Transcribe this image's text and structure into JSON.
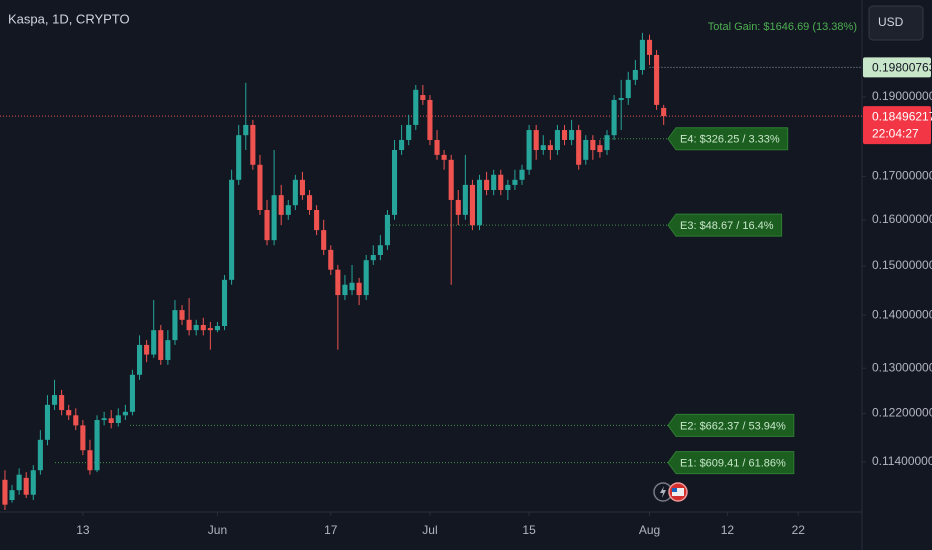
{
  "chart_data": {
    "type": "candlestick",
    "title": "Kaspa, 1D, CRYPTO",
    "currency": "USD",
    "total_gain": "Total Gain: $1646.69 (13.38%)",
    "countdown": "22:04:27",
    "log_scale": true,
    "up_color": "#26a69a",
    "down_color": "#ef5350",
    "xlim": [
      -0.7,
      121
    ],
    "xticks": [
      {
        "value": 11,
        "label": "13"
      },
      {
        "value": 30,
        "label": "Jun"
      },
      {
        "value": 46,
        "label": "17"
      },
      {
        "value": 60,
        "label": "Jul"
      },
      {
        "value": 74,
        "label": "15"
      },
      {
        "value": 91,
        "label": "Aug"
      },
      {
        "value": 102,
        "label": "12"
      },
      {
        "value": 112,
        "label": "22"
      }
    ],
    "ylim": [
      0.1066,
      0.2176
    ],
    "yticks": [
      {
        "value": 0.19,
        "label": "0.19000000"
      },
      {
        "value": 0.17,
        "label": "0.17000000"
      },
      {
        "value": 0.16,
        "label": "0.16000000"
      },
      {
        "value": 0.15,
        "label": "0.15000000"
      },
      {
        "value": 0.14,
        "label": "0.14000000"
      },
      {
        "value": 0.13,
        "label": "0.13000000"
      },
      {
        "value": 0.122,
        "label": "0.12200000"
      },
      {
        "value": 0.114,
        "label": "0.11400000"
      }
    ],
    "open": [
      0.1112,
      0.1081,
      0.1096,
      0.1115,
      0.1089,
      0.1127,
      0.1176,
      0.1235,
      0.1252,
      0.1226,
      0.1217,
      0.12,
      0.1159,
      0.1127,
      0.1209,
      0.1212,
      0.1204,
      0.1217,
      0.1223,
      0.1288,
      0.1343,
      0.1325,
      0.1371,
      0.1315,
      0.1352,
      0.141,
      0.1391,
      0.1371,
      0.1381,
      0.1375,
      0.1371,
      0.1379,
      0.1471,
      0.1692,
      0.1801,
      0.1827,
      0.1728,
      0.1622,
      0.1555,
      0.1656,
      0.1611,
      0.1633,
      0.1692,
      0.1656,
      0.1622,
      0.1577,
      0.1534,
      0.1492,
      0.144,
      0.145,
      0.1465,
      0.144,
      0.1512,
      0.1523,
      0.1544,
      0.1611,
      0.1764,
      0.1789,
      0.1827,
      0.1905,
      0.1892,
      0.1789,
      0.1752,
      0.174,
      0.1645,
      0.1611,
      0.168,
      0.1588,
      0.1692,
      0.1668,
      0.1704,
      0.1668,
      0.168,
      0.1692,
      0.1716,
      0.1814,
      0.1764,
      0.1776,
      0.1764,
      0.1814,
      0.1789,
      0.1814,
      0.174,
      0.1789,
      0.1776,
      0.1764,
      0.1801,
      0.1892,
      0.1897,
      0.1946,
      0.1973,
      0.2058,
      0.2015,
      0.1871
    ],
    "high": [
      0.1127,
      0.1104,
      0.113,
      0.1124,
      0.1135,
      0.1192,
      0.1252,
      0.1279,
      0.1261,
      0.1235,
      0.1229,
      0.1209,
      0.1176,
      0.1217,
      0.1223,
      0.1226,
      0.1229,
      0.1235,
      0.1297,
      0.1361,
      0.1352,
      0.143,
      0.1381,
      0.1371,
      0.143,
      0.142,
      0.1434,
      0.1391,
      0.1395,
      0.1387,
      0.1387,
      0.1481,
      0.1716,
      0.1827,
      0.1938,
      0.184,
      0.1752,
      0.1645,
      0.1764,
      0.168,
      0.1645,
      0.1704,
      0.1711,
      0.1668,
      0.1633,
      0.16,
      0.1544,
      0.1502,
      0.1481,
      0.1502,
      0.1475,
      0.1523,
      0.1544,
      0.1566,
      0.1622,
      0.1789,
      0.1827,
      0.1853,
      0.1932,
      0.1932,
      0.1905,
      0.1814,
      0.1764,
      0.1752,
      0.1668,
      0.1752,
      0.1692,
      0.1704,
      0.1711,
      0.1716,
      0.1716,
      0.1692,
      0.1716,
      0.1728,
      0.1827,
      0.1827,
      0.1801,
      0.1789,
      0.1827,
      0.1827,
      0.184,
      0.1827,
      0.1801,
      0.1801,
      0.1789,
      0.1814,
      0.1905,
      0.1946,
      0.1968,
      0.2001,
      0.2078,
      0.2073,
      0.2029,
      0.1879
    ],
    "low": [
      0.1066,
      0.1077,
      0.1089,
      0.1084,
      0.1081,
      0.112,
      0.1167,
      0.1226,
      0.1217,
      0.1209,
      0.1192,
      0.1151,
      0.112,
      0.1124,
      0.12,
      0.1195,
      0.1198,
      0.1209,
      0.1217,
      0.1279,
      0.1311,
      0.1319,
      0.1306,
      0.1306,
      0.1343,
      0.1381,
      0.1361,
      0.1361,
      0.1361,
      0.1334,
      0.1367,
      0.1371,
      0.1461,
      0.168,
      0.1764,
      0.1716,
      0.1611,
      0.1544,
      0.1544,
      0.1588,
      0.16,
      0.1622,
      0.1645,
      0.1611,
      0.1566,
      0.1523,
      0.1481,
      0.1334,
      0.143,
      0.144,
      0.142,
      0.143,
      0.1502,
      0.1512,
      0.1534,
      0.16,
      0.1752,
      0.1776,
      0.1814,
      0.1879,
      0.1776,
      0.174,
      0.1716,
      0.1461,
      0.1588,
      0.16,
      0.1577,
      0.1577,
      0.1656,
      0.1656,
      0.1656,
      0.1645,
      0.1668,
      0.168,
      0.1704,
      0.174,
      0.1752,
      0.174,
      0.1752,
      0.1776,
      0.1776,
      0.1716,
      0.1728,
      0.174,
      0.1745,
      0.1752,
      0.1789,
      0.1814,
      0.1879,
      0.1932,
      0.196,
      0.1987,
      0.1866,
      0.1827
    ],
    "close": [
      0.1074,
      0.1096,
      0.112,
      0.1089,
      0.1127,
      0.1176,
      0.1235,
      0.1252,
      0.1226,
      0.1217,
      0.12,
      0.1159,
      0.1127,
      0.1209,
      0.1212,
      0.1204,
      0.1217,
      0.1223,
      0.1288,
      0.1343,
      0.1325,
      0.1371,
      0.1315,
      0.1352,
      0.141,
      0.1391,
      0.1371,
      0.1381,
      0.1371,
      0.1371,
      0.1379,
      0.1471,
      0.1692,
      0.1801,
      0.1827,
      0.1728,
      0.1622,
      0.1555,
      0.1656,
      0.1611,
      0.1633,
      0.1692,
      0.1656,
      0.1622,
      0.1577,
      0.1534,
      0.1492,
      0.144,
      0.1461,
      0.1465,
      0.144,
      0.1512,
      0.1523,
      0.1544,
      0.1611,
      0.1764,
      0.1789,
      0.1827,
      0.1919,
      0.1892,
      0.1789,
      0.1752,
      0.174,
      0.1645,
      0.1611,
      0.168,
      0.1588,
      0.1692,
      0.1668,
      0.1704,
      0.1668,
      0.168,
      0.1692,
      0.1716,
      0.1814,
      0.1764,
      0.1776,
      0.1764,
      0.1814,
      0.1789,
      0.1814,
      0.1728,
      0.1789,
      0.1764,
      0.1759,
      0.1801,
      0.1892,
      0.1897,
      0.1946,
      0.1973,
      0.2058,
      0.2015,
      0.1879,
      0.18496217
    ],
    "price_line": {
      "value": 0.19800763,
      "color": "#c8e6c9"
    },
    "levels": [
      {
        "value": 0.1792,
        "label": "E4: $326.25 / 3.33%"
      },
      {
        "value": 0.1588,
        "label": "E3: $48.67 / 16.4%"
      },
      {
        "value": 0.12,
        "label": "E2: $662.37 / 53.94%"
      },
      {
        "value": 0.1139,
        "label": "E1: $609.41 / 61.86%"
      }
    ]
  }
}
